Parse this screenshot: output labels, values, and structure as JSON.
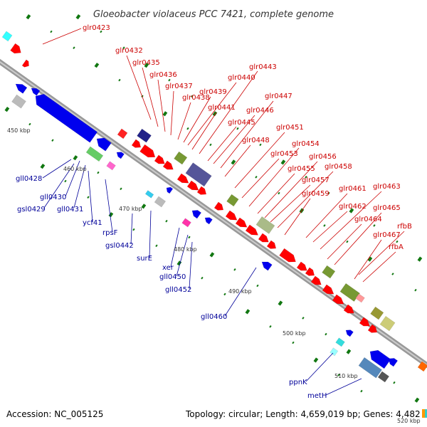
{
  "title": "Gloeobacter violaceus PCC 7421, complete genome",
  "footer": {
    "accession": "Accession: NC_005125",
    "topology": "Topology: circular; Length: 4,659,019 bp; Genes: 4,482"
  },
  "colors": {
    "forward_gene": "#ff0000",
    "reverse_gene": "#0000ee",
    "red_label": "#cc0000",
    "blue_label": "#000099",
    "backbone": "#888888",
    "tick": "#117711"
  },
  "scale_labels": [
    "450 kbp",
    "460 kbp",
    "470 kbp",
    "480 kbp",
    "490 kbp",
    "500 kbp",
    "510 kbp",
    "520 kbp"
  ],
  "red_labels": [
    "glr0423",
    "glr0432",
    "glr0435",
    "glr0436",
    "glr0437",
    "glr0438",
    "glr0439",
    "glr0440",
    "glr0441",
    "glr0443",
    "glr0445",
    "glr0446",
    "glr0447",
    "glr0448",
    "glr0451",
    "glr0453",
    "glr0454",
    "glr0455",
    "glr0456",
    "glr0457",
    "glr0458",
    "glr0459",
    "glr0461",
    "glr0462",
    "glr0463",
    "glr0464",
    "glr0465",
    "glr0467",
    "rfbB",
    "rfbA"
  ],
  "blue_labels": [
    "gll0428",
    "gll0430",
    "gsl0429",
    "gll0431",
    "ycf41",
    "rpsF",
    "gsl0442",
    "surE",
    "xer",
    "gll0450",
    "gll0452",
    "gll0460",
    "ppnK",
    "metH"
  ]
}
